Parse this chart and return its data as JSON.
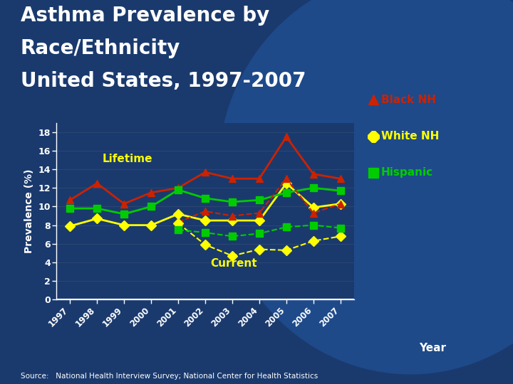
{
  "years": [
    1997,
    1998,
    1999,
    2000,
    2001,
    2002,
    2003,
    2004,
    2005,
    2006,
    2007
  ],
  "black_nh_lifetime": [
    10.7,
    12.5,
    10.3,
    11.5,
    12.0,
    13.7,
    13.0,
    13.0,
    17.5,
    13.5,
    13.0
  ],
  "white_nh_lifetime": [
    7.9,
    8.7,
    8.0,
    8.0,
    9.2,
    8.5,
    8.5,
    8.5,
    12.5,
    9.9,
    10.3
  ],
  "hispanic_lifetime": [
    9.8,
    9.8,
    9.2,
    10.0,
    11.8,
    10.9,
    10.5,
    10.7,
    11.5,
    12.0,
    11.7
  ],
  "white_nh_current_years": [
    2001,
    2002,
    2003,
    2004,
    2005,
    2006,
    2007
  ],
  "white_nh_current": [
    8.2,
    5.9,
    4.7,
    5.4,
    5.3,
    6.3,
    6.8
  ],
  "hispanic_current_years": [
    2001,
    2002,
    2003,
    2004,
    2005,
    2006,
    2007
  ],
  "hispanic_current": [
    7.5,
    7.2,
    6.8,
    7.1,
    7.8,
    8.0,
    7.7
  ],
  "black_nh_current_years": [
    2001,
    2002,
    2003,
    2004,
    2005,
    2006,
    2007
  ],
  "black_nh_current": [
    8.3,
    9.5,
    9.0,
    9.3,
    13.0,
    9.3,
    10.3
  ],
  "title_line1": "Asthma Prevalence by",
  "title_line2": "Race/Ethnicity",
  "title_line3": "United States, 1997-2007",
  "ylabel": "Prevalence (%)",
  "xlabel": "Year",
  "source_text": "Source:   National Health Interview Survey; National Center for Health Statistics",
  "legend_black": "Black NH",
  "legend_white": "White NH",
  "legend_hispanic": "Hispanic",
  "color_black": "#cc2200",
  "color_white": "#ffff00",
  "color_hispanic": "#00cc00",
  "bg_color": "#1a3a6e",
  "text_color": "#ffffff",
  "ylim": [
    0,
    19
  ],
  "yticks": [
    0,
    2,
    4,
    6,
    8,
    10,
    12,
    14,
    16,
    18
  ],
  "lifetime_label": "Lifetime",
  "current_label": "Current"
}
